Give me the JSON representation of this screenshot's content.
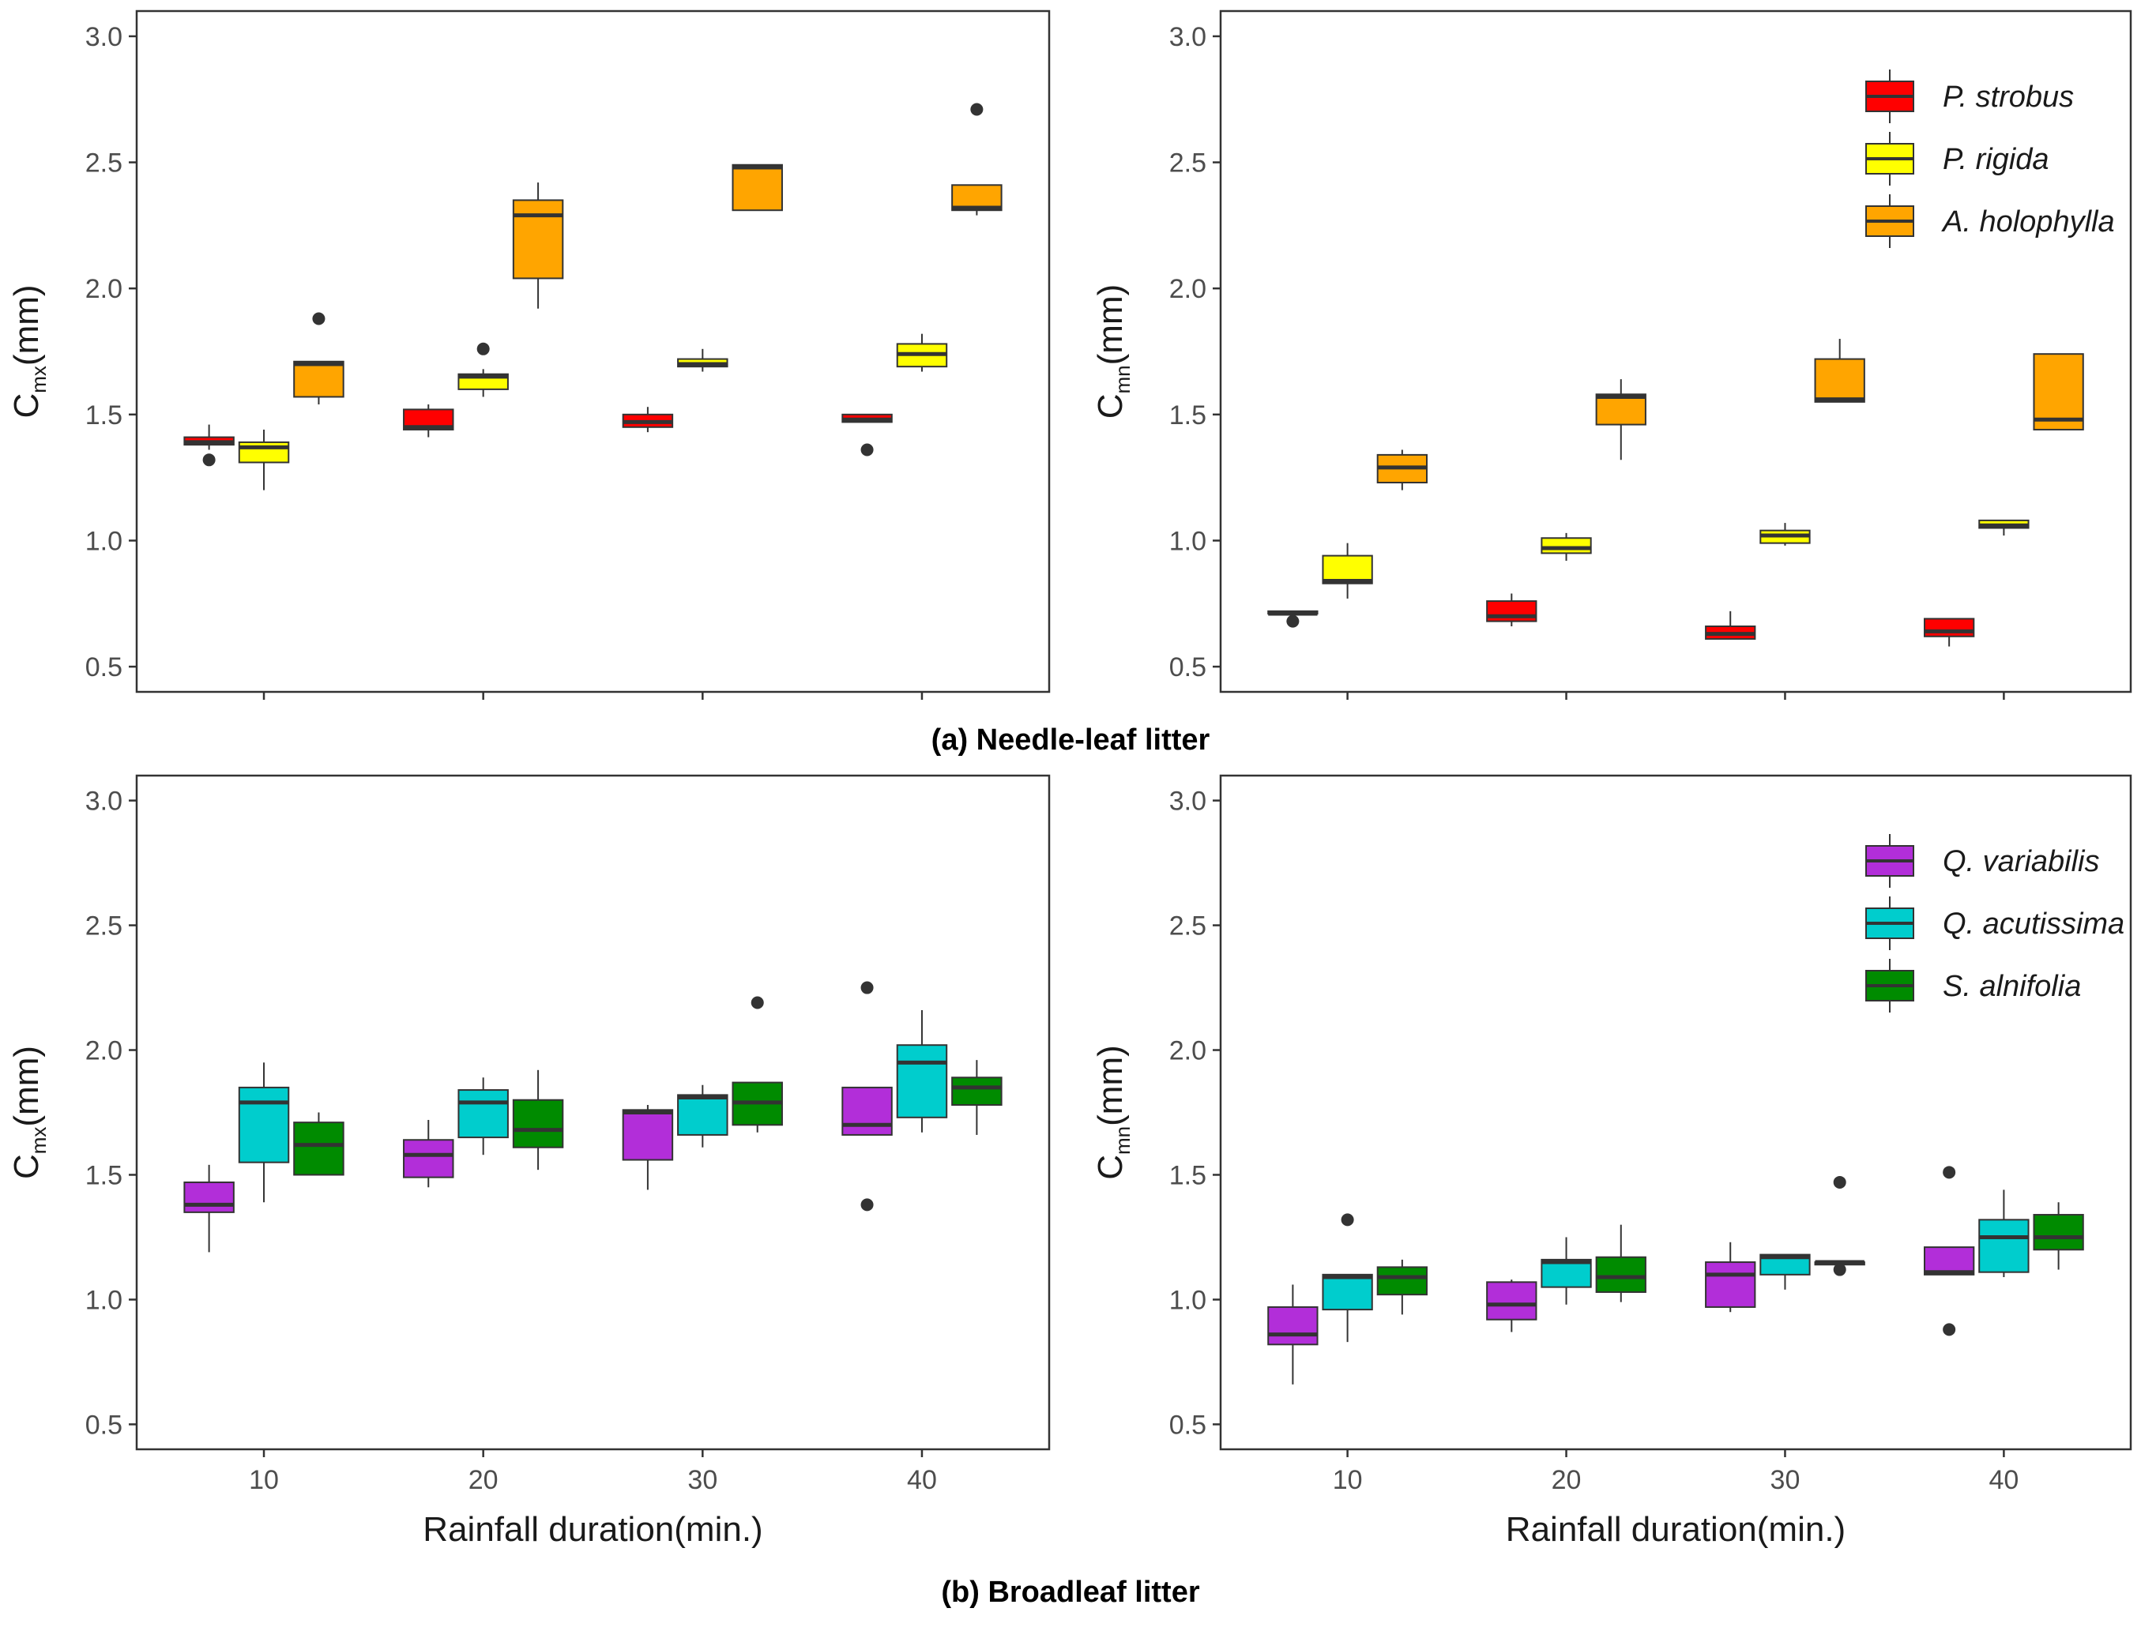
{
  "figure": {
    "section_titles": {
      "needle": "(a) Needle-leaf litter",
      "broad": "(b) Broadleaf litter"
    },
    "xlabel": "Rainfall duration(min.)",
    "ylabel_mx": {
      "base": "C",
      "sub": "mx",
      "rest": "(mm)"
    },
    "ylabel_mn": {
      "base": "C",
      "sub": "mn",
      "rest": "(mm)"
    }
  },
  "chart_data": [
    {
      "type": "boxplot",
      "panel": "needle-cmx",
      "ylim": [
        0.4,
        3.1
      ],
      "yticks": [
        0.5,
        1.0,
        1.5,
        2.0,
        2.5,
        3.0
      ],
      "categories": [
        "10",
        "20",
        "30",
        "40"
      ],
      "show_xtick_labels": false,
      "ylabel": "Cmx(mm)",
      "series": [
        {
          "name": "P. strobus",
          "color": "#ff0000",
          "boxes": [
            {
              "whislo": 1.36,
              "q1": 1.38,
              "med": 1.39,
              "q3": 1.41,
              "whishi": 1.46,
              "fliers": [
                1.32
              ]
            },
            {
              "whislo": 1.41,
              "q1": 1.44,
              "med": 1.45,
              "q3": 1.52,
              "whishi": 1.54,
              "fliers": []
            },
            {
              "whislo": 1.43,
              "q1": 1.45,
              "med": 1.47,
              "q3": 1.5,
              "whishi": 1.53,
              "fliers": []
            },
            {
              "whislo": 1.47,
              "q1": 1.47,
              "med": 1.48,
              "q3": 1.5,
              "whishi": 1.5,
              "fliers": [
                1.36
              ]
            }
          ]
        },
        {
          "name": "P. rigida",
          "color": "#ffff00",
          "boxes": [
            {
              "whislo": 1.2,
              "q1": 1.31,
              "med": 1.37,
              "q3": 1.39,
              "whishi": 1.44,
              "fliers": []
            },
            {
              "whislo": 1.57,
              "q1": 1.6,
              "med": 1.65,
              "q3": 1.66,
              "whishi": 1.68,
              "fliers": [
                1.76
              ]
            },
            {
              "whislo": 1.67,
              "q1": 1.69,
              "med": 1.7,
              "q3": 1.72,
              "whishi": 1.76,
              "fliers": []
            },
            {
              "whislo": 1.67,
              "q1": 1.69,
              "med": 1.74,
              "q3": 1.78,
              "whishi": 1.82,
              "fliers": []
            }
          ]
        },
        {
          "name": "A. holophylla",
          "color": "#ffa500",
          "boxes": [
            {
              "whislo": 1.54,
              "q1": 1.57,
              "med": 1.7,
              "q3": 1.71,
              "whishi": 1.71,
              "fliers": [
                1.88
              ]
            },
            {
              "whislo": 1.92,
              "q1": 2.04,
              "med": 2.29,
              "q3": 2.35,
              "whishi": 2.42,
              "fliers": []
            },
            {
              "whislo": 2.31,
              "q1": 2.31,
              "med": 2.48,
              "q3": 2.49,
              "whishi": 2.49,
              "fliers": []
            },
            {
              "whislo": 2.29,
              "q1": 2.31,
              "med": 2.32,
              "q3": 2.41,
              "whishi": 2.41,
              "fliers": [
                2.71
              ]
            }
          ]
        }
      ]
    },
    {
      "type": "boxplot",
      "panel": "needle-cmn",
      "ylim": [
        0.4,
        3.1
      ],
      "yticks": [
        0.5,
        1.0,
        1.5,
        2.0,
        2.5,
        3.0
      ],
      "categories": [
        "10",
        "20",
        "30",
        "40"
      ],
      "show_xtick_labels": false,
      "ylabel": "Cmn(mm)",
      "legend": {
        "position": "top-right"
      },
      "series": [
        {
          "name": "P. strobus",
          "color": "#ff0000",
          "boxes": [
            {
              "whislo": 0.71,
              "q1": 0.71,
              "med": 0.71,
              "q3": 0.72,
              "whishi": 0.72,
              "fliers": [
                0.68
              ]
            },
            {
              "whislo": 0.66,
              "q1": 0.68,
              "med": 0.7,
              "q3": 0.76,
              "whishi": 0.79,
              "fliers": []
            },
            {
              "whislo": 0.61,
              "q1": 0.61,
              "med": 0.63,
              "q3": 0.66,
              "whishi": 0.72,
              "fliers": []
            },
            {
              "whislo": 0.58,
              "q1": 0.62,
              "med": 0.64,
              "q3": 0.69,
              "whishi": 0.69,
              "fliers": []
            }
          ]
        },
        {
          "name": "P. rigida",
          "color": "#ffff00",
          "boxes": [
            {
              "whislo": 0.77,
              "q1": 0.83,
              "med": 0.84,
              "q3": 0.94,
              "whishi": 0.99,
              "fliers": []
            },
            {
              "whislo": 0.92,
              "q1": 0.95,
              "med": 0.97,
              "q3": 1.01,
              "whishi": 1.03,
              "fliers": []
            },
            {
              "whislo": 0.98,
              "q1": 0.99,
              "med": 1.02,
              "q3": 1.04,
              "whishi": 1.07,
              "fliers": []
            },
            {
              "whislo": 1.02,
              "q1": 1.05,
              "med": 1.06,
              "q3": 1.08,
              "whishi": 1.08,
              "fliers": []
            }
          ]
        },
        {
          "name": "A. holophylla",
          "color": "#ffa500",
          "boxes": [
            {
              "whislo": 1.2,
              "q1": 1.23,
              "med": 1.29,
              "q3": 1.34,
              "whishi": 1.36,
              "fliers": []
            },
            {
              "whislo": 1.32,
              "q1": 1.46,
              "med": 1.57,
              "q3": 1.58,
              "whishi": 1.64,
              "fliers": []
            },
            {
              "whislo": 1.55,
              "q1": 1.55,
              "med": 1.56,
              "q3": 1.72,
              "whishi": 1.8,
              "fliers": []
            },
            {
              "whislo": 1.44,
              "q1": 1.44,
              "med": 1.48,
              "q3": 1.74,
              "whishi": 1.74,
              "fliers": []
            }
          ]
        }
      ]
    },
    {
      "type": "boxplot",
      "panel": "broad-cmx",
      "ylim": [
        0.4,
        3.1
      ],
      "yticks": [
        0.5,
        1.0,
        1.5,
        2.0,
        2.5,
        3.0
      ],
      "categories": [
        "10",
        "20",
        "30",
        "40"
      ],
      "show_xtick_labels": true,
      "ylabel": "Cmx(mm)",
      "series": [
        {
          "name": "Q. variabilis",
          "color": "#b22ed9",
          "boxes": [
            {
              "whislo": 1.19,
              "q1": 1.35,
              "med": 1.38,
              "q3": 1.47,
              "whishi": 1.54,
              "fliers": []
            },
            {
              "whislo": 1.45,
              "q1": 1.49,
              "med": 1.58,
              "q3": 1.64,
              "whishi": 1.72,
              "fliers": []
            },
            {
              "whislo": 1.44,
              "q1": 1.56,
              "med": 1.75,
              "q3": 1.76,
              "whishi": 1.78,
              "fliers": []
            },
            {
              "whislo": 1.66,
              "q1": 1.66,
              "med": 1.7,
              "q3": 1.85,
              "whishi": 1.85,
              "fliers": [
                1.38,
                2.25
              ]
            }
          ]
        },
        {
          "name": "Q. acutissima",
          "color": "#00cdcd",
          "boxes": [
            {
              "whislo": 1.39,
              "q1": 1.55,
              "med": 1.79,
              "q3": 1.85,
              "whishi": 1.95,
              "fliers": []
            },
            {
              "whislo": 1.58,
              "q1": 1.65,
              "med": 1.79,
              "q3": 1.84,
              "whishi": 1.89,
              "fliers": []
            },
            {
              "whislo": 1.61,
              "q1": 1.66,
              "med": 1.81,
              "q3": 1.82,
              "whishi": 1.86,
              "fliers": []
            },
            {
              "whislo": 1.67,
              "q1": 1.73,
              "med": 1.95,
              "q3": 2.02,
              "whishi": 2.16,
              "fliers": []
            }
          ]
        },
        {
          "name": "S. alnifolia",
          "color": "#008b00",
          "boxes": [
            {
              "whislo": 1.5,
              "q1": 1.5,
              "med": 1.62,
              "q3": 1.71,
              "whishi": 1.75,
              "fliers": []
            },
            {
              "whislo": 1.52,
              "q1": 1.61,
              "med": 1.68,
              "q3": 1.8,
              "whishi": 1.92,
              "fliers": []
            },
            {
              "whislo": 1.67,
              "q1": 1.7,
              "med": 1.79,
              "q3": 1.87,
              "whishi": 1.87,
              "fliers": [
                2.19
              ]
            },
            {
              "whislo": 1.66,
              "q1": 1.78,
              "med": 1.85,
              "q3": 1.89,
              "whishi": 1.96,
              "fliers": []
            }
          ]
        }
      ]
    },
    {
      "type": "boxplot",
      "panel": "broad-cmn",
      "ylim": [
        0.4,
        3.1
      ],
      "yticks": [
        0.5,
        1.0,
        1.5,
        2.0,
        2.5,
        3.0
      ],
      "categories": [
        "10",
        "20",
        "30",
        "40"
      ],
      "show_xtick_labels": true,
      "ylabel": "Cmn(mm)",
      "legend": {
        "position": "top-right"
      },
      "series": [
        {
          "name": "Q. variabilis",
          "color": "#b22ed9",
          "boxes": [
            {
              "whislo": 0.66,
              "q1": 0.82,
              "med": 0.86,
              "q3": 0.97,
              "whishi": 1.06,
              "fliers": []
            },
            {
              "whislo": 0.87,
              "q1": 0.92,
              "med": 0.98,
              "q3": 1.07,
              "whishi": 1.08,
              "fliers": []
            },
            {
              "whislo": 0.95,
              "q1": 0.97,
              "med": 1.1,
              "q3": 1.15,
              "whishi": 1.23,
              "fliers": []
            },
            {
              "whislo": 1.1,
              "q1": 1.1,
              "med": 1.11,
              "q3": 1.21,
              "whishi": 1.21,
              "fliers": [
                0.88,
                1.51
              ]
            }
          ]
        },
        {
          "name": "Q. acutissima",
          "color": "#00cdcd",
          "boxes": [
            {
              "whislo": 0.83,
              "q1": 0.96,
              "med": 1.09,
              "q3": 1.1,
              "whishi": 1.1,
              "fliers": [
                1.32
              ]
            },
            {
              "whislo": 0.98,
              "q1": 1.05,
              "med": 1.15,
              "q3": 1.16,
              "whishi": 1.25,
              "fliers": []
            },
            {
              "whislo": 1.04,
              "q1": 1.1,
              "med": 1.17,
              "q3": 1.18,
              "whishi": 1.18,
              "fliers": []
            },
            {
              "whislo": 1.09,
              "q1": 1.11,
              "med": 1.25,
              "q3": 1.32,
              "whishi": 1.44,
              "fliers": []
            }
          ]
        },
        {
          "name": "S. alnifolia",
          "color": "#008b00",
          "boxes": [
            {
              "whislo": 0.94,
              "q1": 1.02,
              "med": 1.09,
              "q3": 1.13,
              "whishi": 1.16,
              "fliers": []
            },
            {
              "whislo": 0.99,
              "q1": 1.03,
              "med": 1.09,
              "q3": 1.17,
              "whishi": 1.3,
              "fliers": []
            },
            {
              "whislo": 1.14,
              "q1": 1.14,
              "med": 1.15,
              "q3": 1.15,
              "whishi": 1.15,
              "fliers": [
                1.12,
                1.47
              ]
            },
            {
              "whislo": 1.12,
              "q1": 1.2,
              "med": 1.25,
              "q3": 1.34,
              "whishi": 1.39,
              "fliers": []
            }
          ]
        }
      ]
    }
  ]
}
